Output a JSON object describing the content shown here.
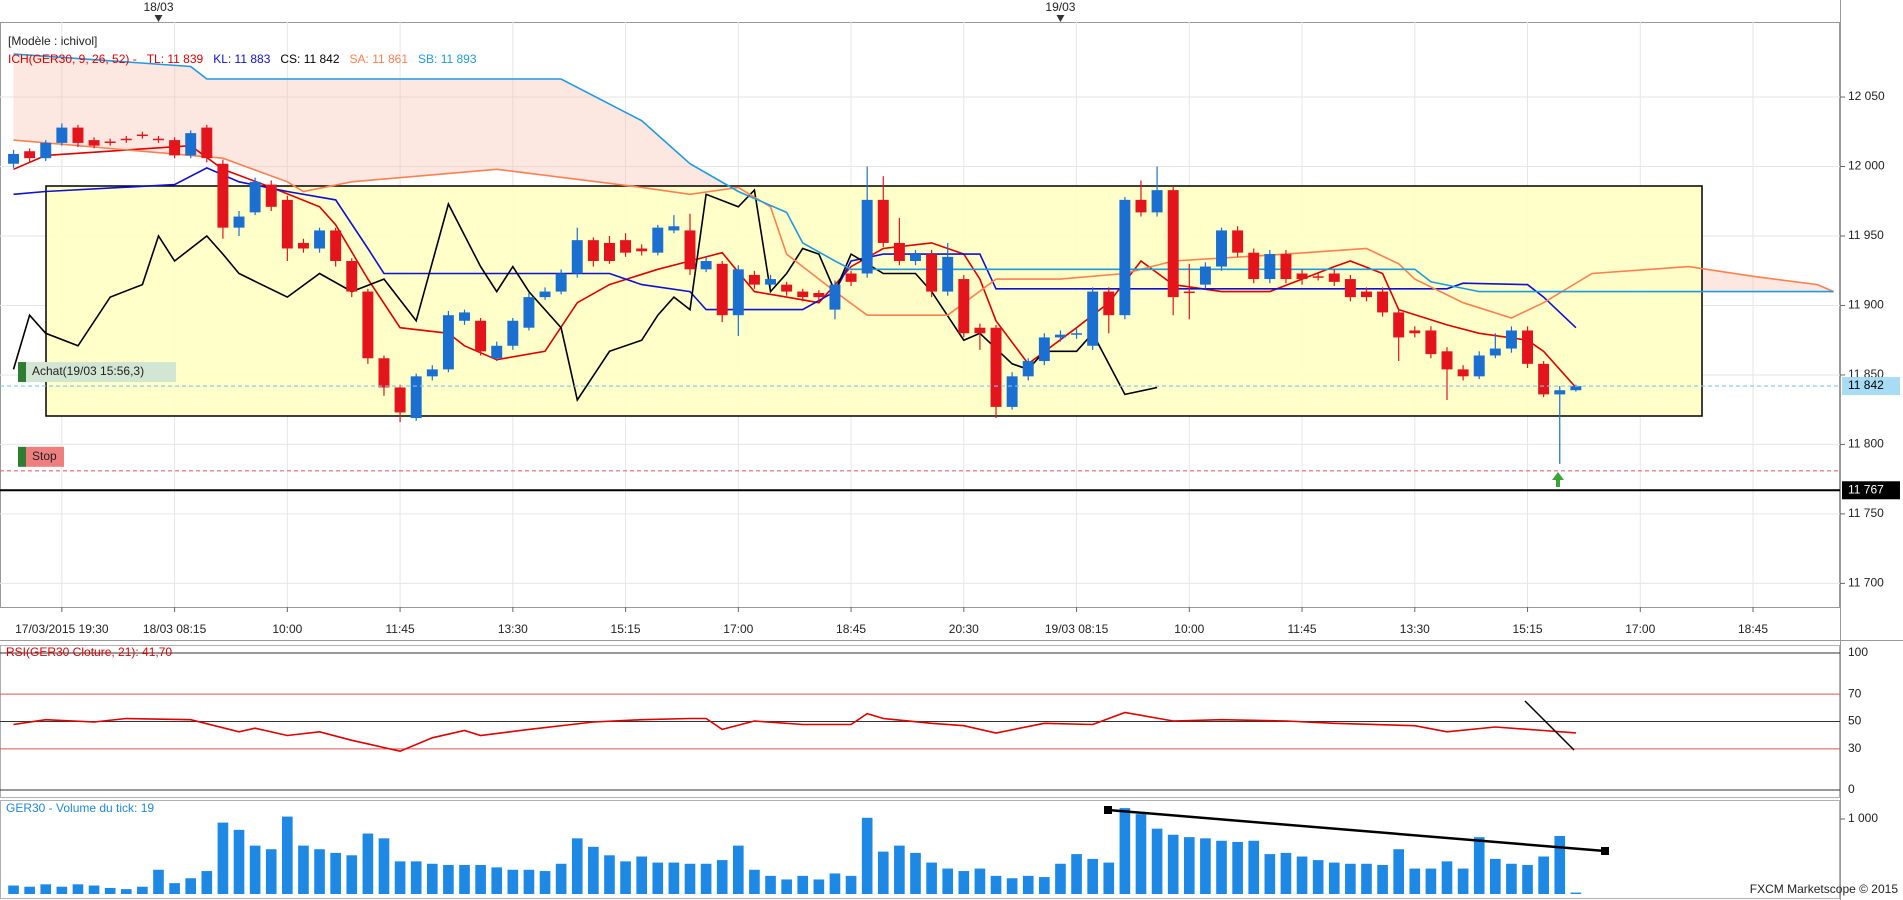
{
  "chart_data": [
    {
      "type": "candlestick",
      "model": "[Modèle : ichivol]",
      "indicator": "ICH(GER30, 9, 26, 52) -",
      "xlim": [
        -0.84,
        113.4
      ],
      "xticks": [
        {
          "value": 3,
          "label": "17/03/2015 19:30"
        },
        {
          "value": 10,
          "label": "18/03 08:15"
        },
        {
          "value": 17,
          "label": "10:00"
        },
        {
          "value": 24,
          "label": "11:45"
        },
        {
          "value": 31,
          "label": "13:30"
        },
        {
          "value": 38,
          "label": "15:15"
        },
        {
          "value": 45,
          "label": "17:00"
        },
        {
          "value": 52,
          "label": "18:45"
        },
        {
          "value": 59,
          "label": "20:30"
        },
        {
          "value": 66,
          "label": "19/03 08:15"
        },
        {
          "value": 73,
          "label": "10:00"
        },
        {
          "value": 80,
          "label": "11:45"
        },
        {
          "value": 87,
          "label": "13:30"
        },
        {
          "value": 94,
          "label": "15:15"
        },
        {
          "value": 101,
          "label": "17:00"
        },
        {
          "value": 108,
          "label": "18:45"
        }
      ],
      "date_markers": [
        {
          "value": 9,
          "label": "18/03"
        },
        {
          "value": 65,
          "label": "19/03"
        }
      ],
      "ylim": [
        11683,
        12104
      ],
      "yticks": [
        {
          "value": 11700,
          "label": "11 700"
        },
        {
          "value": 11750,
          "label": "11 750"
        },
        {
          "value": 11800,
          "label": "11 800"
        },
        {
          "value": 11850,
          "label": "11 850"
        },
        {
          "value": 11900,
          "label": "11 900"
        },
        {
          "value": 11950,
          "label": "11 950"
        },
        {
          "value": 12000,
          "label": "12 000"
        },
        {
          "value": 12050,
          "label": "12 050"
        }
      ],
      "grid": true,
      "up_color": "#1a6fd0",
      "down_color": "#e3141b",
      "cloud_color": "#f7b9a8",
      "open": [
        12002,
        12011,
        12006,
        12017,
        12028,
        12019,
        12018,
        12020,
        12023,
        12020,
        12019,
        12008,
        12028,
        12002,
        11956,
        11967,
        11987,
        11976,
        11945,
        11941,
        11954,
        11932,
        11910,
        11862,
        11841,
        11819,
        11849,
        11854,
        11889,
        11889,
        11862,
        11871,
        11884,
        11906,
        11910,
        11923,
        11947,
        11945,
        11947,
        11941,
        11938,
        11954,
        11954,
        11926,
        11930,
        11893,
        11922,
        11915,
        11915,
        11910,
        11909,
        11897,
        11923,
        11923,
        11976,
        11945,
        11932,
        11937,
        11910,
        11919,
        11884,
        11884,
        11827,
        11849,
        11860,
        11877,
        11879,
        11871,
        11910,
        11893,
        11976,
        11967,
        11983,
        11910,
        11915,
        11928,
        11954,
        11938,
        11919,
        11937,
        11923,
        11921,
        11923,
        11919,
        11910,
        11910,
        11895,
        11882,
        11882,
        11867,
        11854,
        11849,
        11864,
        11869,
        11882,
        11858,
        11836,
        11839
      ],
      "high": [
        12012,
        12013,
        12019,
        12031,
        12030,
        12021,
        12020,
        12022,
        12025,
        12022,
        12021,
        12026,
        12030,
        12005,
        11968,
        11992,
        11990,
        11979,
        11948,
        11956,
        11956,
        11934,
        11912,
        11864,
        11843,
        11851,
        11857,
        11896,
        11897,
        11891,
        11874,
        11891,
        11909,
        11913,
        11926,
        11956,
        11949,
        11950,
        11952,
        11944,
        11958,
        11965,
        11966,
        11935,
        11932,
        11929,
        11925,
        11922,
        11917,
        11912,
        11911,
        11918,
        11925,
        12000,
        11993,
        11963,
        11940,
        11940,
        11945,
        11922,
        11887,
        11886,
        11852,
        11862,
        11880,
        11882,
        11884,
        11913,
        11913,
        11978,
        11990,
        12000,
        11986,
        11930,
        11931,
        11956,
        11957,
        11941,
        11940,
        11940,
        11926,
        11923,
        11926,
        11922,
        11913,
        11913,
        11897,
        11885,
        11885,
        11870,
        11857,
        11867,
        11880,
        11885,
        11885,
        11860,
        11842,
        11843
      ],
      "low": [
        11999,
        12003,
        12004,
        12015,
        12014,
        12013,
        12015,
        12017,
        12020,
        12017,
        12006,
        12006,
        12003,
        11948,
        11950,
        11965,
        11968,
        11932,
        11938,
        11938,
        11928,
        11906,
        11858,
        11835,
        11816,
        11817,
        11846,
        11852,
        11886,
        11864,
        11860,
        11868,
        11882,
        11904,
        11908,
        11920,
        11928,
        11930,
        11935,
        11936,
        11936,
        11952,
        11922,
        11924,
        11888,
        11878,
        11912,
        11913,
        11907,
        11903,
        11903,
        11890,
        11914,
        11920,
        11942,
        11929,
        11929,
        11906,
        11907,
        11877,
        11868,
        11819,
        11825,
        11846,
        11857,
        11874,
        11876,
        11868,
        11880,
        11890,
        11964,
        11964,
        11893,
        11890,
        11912,
        11925,
        11935,
        11916,
        11916,
        11916,
        11915,
        11918,
        11914,
        11903,
        11903,
        11892,
        11860,
        11877,
        11862,
        11832,
        11846,
        11847,
        11862,
        11866,
        11855,
        11834,
        11786,
        11838
      ],
      "close": [
        12009,
        12006,
        12017,
        12028,
        12017,
        12015,
        12017,
        12019,
        12022,
        12019,
        12008,
        12024,
        12006,
        11956,
        11964,
        11989,
        11971,
        11941,
        11941,
        11954,
        11932,
        11910,
        11862,
        11841,
        11823,
        11849,
        11854,
        11893,
        11895,
        11867,
        11871,
        11889,
        11906,
        11910,
        11923,
        11947,
        11932,
        11932,
        11938,
        11939,
        11956,
        11957,
        11926,
        11932,
        11893,
        11926,
        11915,
        11919,
        11910,
        11906,
        11906,
        11915,
        11917,
        11976,
        11945,
        11932,
        11937,
        11910,
        11935,
        11880,
        11880,
        11827,
        11849,
        11860,
        11877,
        11879,
        11880,
        11910,
        11893,
        11976,
        11967,
        11983,
        11906,
        11909,
        11928,
        11954,
        11938,
        11919,
        11937,
        11919,
        11919,
        11920,
        11917,
        11906,
        11906,
        11895,
        11877,
        11880,
        11865,
        11854,
        11849,
        11864,
        11869,
        11882,
        11858,
        11836,
        11839,
        11842
      ],
      "series": [
        {
          "name": "TL: 11 839",
          "color": "#e00000",
          "x": [
            0,
            2,
            11,
            13,
            16,
            19,
            20,
            22,
            24,
            27,
            28,
            30,
            33,
            35,
            37,
            40,
            42,
            44,
            46,
            48,
            50,
            52,
            54,
            57,
            59,
            60,
            61,
            63,
            66,
            68,
            70,
            72,
            75,
            78,
            82,
            83,
            85,
            86,
            89,
            91,
            94,
            95,
            97
          ],
          "values": [
            11998,
            12008,
            12015,
            11998,
            11985,
            11971,
            11958,
            11919,
            11884,
            11880,
            11871,
            11861,
            11867,
            11902,
            11915,
            11926,
            11932,
            11938,
            11910,
            11906,
            11902,
            11928,
            11941,
            11945,
            11937,
            11919,
            11889,
            11858,
            11884,
            11902,
            11932,
            11915,
            11910,
            11910,
            11928,
            11932,
            11923,
            11897,
            11886,
            11880,
            11875,
            11867,
            11841
          ]
        },
        {
          "name": "KL: 11 883",
          "color": "#1010d0",
          "x": [
            0,
            2,
            10,
            12,
            14,
            17,
            20,
            22,
            23,
            37,
            39,
            42,
            43,
            49,
            51,
            52,
            54,
            60,
            61,
            89,
            90,
            94,
            95,
            97
          ],
          "values": [
            11980,
            11982,
            11987,
            11999,
            11989,
            11982,
            11976,
            11941,
            11923,
            11923,
            11915,
            11910,
            11897,
            11897,
            11910,
            11932,
            11937,
            11937,
            11912,
            11912,
            11916,
            11915,
            11906,
            11884
          ]
        },
        {
          "name": "CS: 11 842",
          "color": "#000000",
          "x": [
            0,
            1,
            2,
            4,
            6,
            8,
            9,
            10,
            12,
            13,
            14,
            17,
            19,
            21,
            23,
            25,
            27,
            29,
            30,
            31,
            32,
            34,
            35,
            37,
            39,
            40,
            41,
            42,
            43,
            45,
            46,
            47,
            48,
            49,
            50,
            51,
            52,
            54,
            56,
            57,
            59,
            60,
            62,
            63,
            64,
            66,
            67,
            69,
            71
          ],
          "values": [
            11854,
            11893,
            11880,
            11871,
            11906,
            11915,
            11950,
            11932,
            11950,
            11937,
            11923,
            11906,
            11923,
            11910,
            11919,
            11889,
            11973,
            11928,
            11910,
            11928,
            11910,
            11884,
            11832,
            11867,
            11875,
            11893,
            11906,
            11897,
            11980,
            11971,
            11983,
            11910,
            11923,
            11941,
            11937,
            11910,
            11937,
            11923,
            11923,
            11910,
            11875,
            11880,
            11858,
            11854,
            11867,
            11867,
            11880,
            11836,
            11841
          ]
        },
        {
          "name": "SA: 11 861",
          "color": "#ff7f50",
          "x": [
            0,
            13,
            17,
            18,
            21,
            30,
            39,
            42,
            45,
            47,
            48,
            51,
            53,
            58,
            61,
            65,
            69,
            72,
            79,
            84,
            86,
            87,
            90,
            93,
            95,
            98,
            104,
            108,
            112,
            113
          ],
          "values": [
            12019,
            12006,
            11989,
            11982,
            11989,
            11998,
            11985,
            11980,
            11985,
            11971,
            11937,
            11910,
            11893,
            11893,
            11919,
            11919,
            11923,
            11932,
            11937,
            11941,
            11930,
            11919,
            11902,
            11891,
            11902,
            11923,
            11928,
            11921,
            11915,
            11910
          ]
        },
        {
          "name": "SB: 11 893",
          "color": "#1e9be0",
          "x": [
            0,
            11,
            12,
            34,
            39,
            42,
            45,
            48,
            49,
            51,
            52,
            87,
            88,
            91,
            113
          ],
          "values": [
            12081,
            12072,
            12063,
            12063,
            12033,
            12002,
            11982,
            11967,
            11945,
            11932,
            11926,
            11926,
            11917,
            11910,
            11910
          ]
        }
      ],
      "levels": [
        {
          "name": "Achat(19/03 15:56,3)",
          "value": 11842,
          "color": "#7cc4ee",
          "label_bg": "#d3e6d3",
          "label_color": "#8a8a8a"
        },
        {
          "name": "Stop",
          "value": 11781,
          "color": "#e06a6a",
          "label_bg": "#ef7f7f",
          "label_color": "#b00000"
        }
      ],
      "price_tags": [
        {
          "value": 11842,
          "label": "11 842",
          "color": "#a8dcf5",
          "text_color": "#000000",
          "line": false
        },
        {
          "value": 11767,
          "label": "11 767",
          "color": "#000000",
          "text_color": "#ffffff",
          "line": true
        }
      ]
    },
    {
      "type": "line",
      "title": "RSI(GER30 Cloture, 21): 41,70",
      "color": "#e00000",
      "ylim": [
        0,
        100
      ],
      "yticks": [
        0,
        30,
        50,
        70,
        100
      ],
      "grid_colors": [
        "#333333",
        "#e05050",
        "#333333",
        "#e05050",
        "#333333"
      ],
      "x": [
        0,
        2,
        5,
        7,
        11,
        14,
        15,
        17,
        19,
        21,
        24,
        26,
        28,
        29,
        32,
        36,
        39,
        42,
        43,
        44,
        46,
        49,
        52,
        53,
        54,
        57,
        59,
        61,
        64,
        67,
        69,
        72,
        75,
        79,
        82,
        87,
        89,
        92,
        95,
        97
      ],
      "values": [
        47.8,
        51.3,
        49.6,
        52.2,
        51.3,
        42.5,
        45.1,
        39.8,
        42.5,
        36.3,
        28.3,
        38.1,
        43.4,
        39.8,
        44.2,
        49.6,
        51.3,
        52.2,
        52.2,
        44.2,
        50.4,
        47.8,
        47.8,
        55.8,
        52.2,
        48.7,
        46.9,
        41.6,
        48.7,
        47.8,
        56.6,
        50.4,
        51.3,
        50.4,
        48.7,
        46.9,
        42.5,
        46.0,
        43.4,
        41.7
      ]
    },
    {
      "type": "bar",
      "title": "GER30 - Volume du tick: 19",
      "color": "#1e88e5",
      "ylim": [
        0,
        1240
      ],
      "yticks": [
        {
          "value": 1000,
          "label": "1 000"
        }
      ],
      "values": [
        113,
        97,
        129,
        97,
        129,
        113,
        81,
        65,
        97,
        323,
        145,
        210,
        306,
        952,
        855,
        645,
        597,
        1032,
        645,
        597,
        548,
        516,
        806,
        742,
        435,
        435,
        403,
        387,
        387,
        387,
        355,
        323,
        323,
        306,
        403,
        742,
        629,
        516,
        435,
        500,
        419,
        419,
        403,
        403,
        452,
        645,
        323,
        242,
        194,
        242,
        194,
        274,
        242,
        1016,
        565,
        645,
        548,
        419,
        339,
        306,
        339,
        242,
        210,
        242,
        226,
        403,
        532,
        468,
        419,
        1145,
        1065,
        871,
        790,
        758,
        742,
        710,
        694,
        710,
        532,
        548,
        500,
        452,
        419,
        403,
        403,
        387,
        597,
        339,
        339,
        435,
        339,
        758,
        468,
        403,
        387,
        500,
        774,
        19
      ]
    }
  ],
  "footer": "FXCM Marketscope © 2015"
}
